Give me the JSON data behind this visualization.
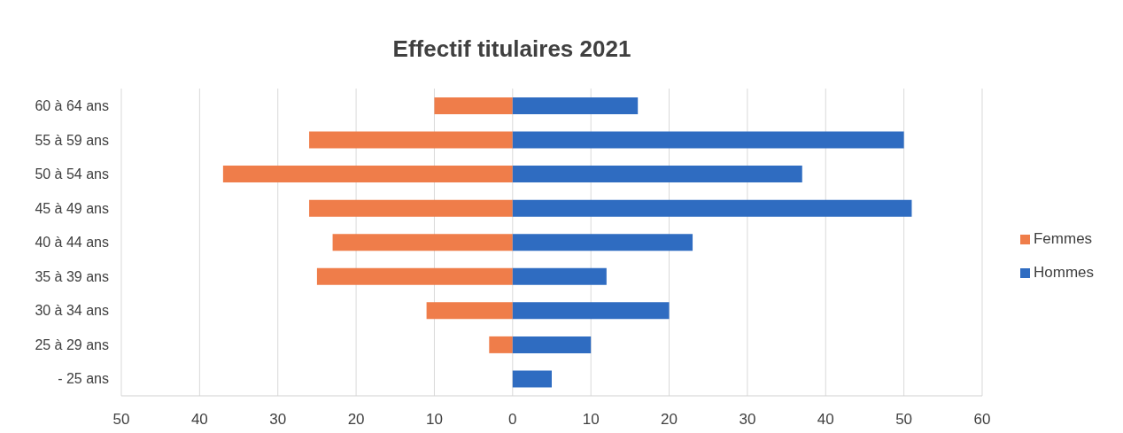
{
  "chart_data": {
    "type": "bar",
    "title": "Effectif titulaires 2021",
    "orientation": "horizontal",
    "stacked": true,
    "categories": [
      "60 à 64 ans",
      "55 à 59 ans",
      "50 à 54 ans",
      "45 à 49 ans",
      "40 à 44 ans",
      "35 à 39 ans",
      "30 à 34 ans",
      "25 à 29 ans",
      "- 25 ans"
    ],
    "series": [
      {
        "name": "Femmes",
        "color": "#ef7d4a",
        "values": [
          -10,
          -26,
          -37,
          -26,
          -23,
          -25,
          -11,
          -3,
          null
        ]
      },
      {
        "name": "Hommes",
        "color": "#2f6cc1",
        "values": [
          16,
          50,
          37,
          51,
          23,
          12,
          20,
          10,
          5
        ]
      }
    ],
    "xlim": [
      -50,
      60
    ],
    "xticks": [
      {
        "value": -50,
        "label": "50"
      },
      {
        "value": -40,
        "label": "40"
      },
      {
        "value": -30,
        "label": "30"
      },
      {
        "value": -20,
        "label": "20"
      },
      {
        "value": -10,
        "label": "10"
      },
      0,
      10,
      20,
      30,
      40,
      50,
      60
    ],
    "grid": "x",
    "legend": "right"
  }
}
